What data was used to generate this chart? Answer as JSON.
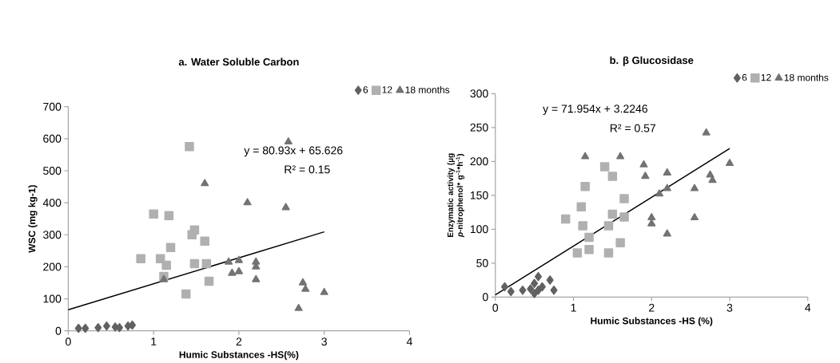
{
  "chart_data": [
    {
      "type": "scatter",
      "title": "a. Water Soluble Carbon",
      "xlabel": "Humic Substances -HS(%)",
      "ylabel": "WSC (mg kg-1)",
      "xlim": [
        0,
        4
      ],
      "xticks": [
        0,
        1,
        2,
        3,
        4
      ],
      "ylim": [
        0,
        700
      ],
      "yticks": [
        0,
        100,
        200,
        300,
        400,
        500,
        600,
        700
      ],
      "legend": "top right",
      "annotations": [
        "y = 80.93x + 65.626",
        "R² = 0.15"
      ],
      "series": [
        {
          "name": "6",
          "color": "#616161",
          "marker": "diamond",
          "x": [
            0.12,
            0.2,
            0.35,
            0.45,
            0.55,
            0.6,
            0.7,
            0.75
          ],
          "values": [
            8,
            8,
            10,
            15,
            12,
            10,
            15,
            18
          ]
        },
        {
          "name": "12",
          "color": "#b0b0b0",
          "marker": "square",
          "x": [
            0.85,
            1.0,
            1.05,
            1.08,
            1.12,
            1.15,
            1.18,
            1.2,
            1.38,
            1.42,
            1.45,
            1.48,
            1.48,
            1.6,
            1.62,
            1.65
          ],
          "values": [
            225,
            365,
            null,
            225,
            170,
            205,
            360,
            260,
            115,
            575,
            300,
            315,
            210,
            280,
            210,
            155
          ]
        },
        {
          "name": "18 months",
          "color": "#737373",
          "marker": "triangle",
          "x": [
            1.12,
            1.6,
            1.88,
            1.92,
            2.0,
            2.0,
            2.1,
            2.2,
            2.2,
            2.2,
            2.55,
            2.58,
            2.7,
            2.75,
            2.78,
            3.0
          ],
          "values": [
            160,
            460,
            215,
            180,
            220,
            185,
            400,
            215,
            200,
            160,
            385,
            590,
            70,
            150,
            130,
            120
          ]
        },
        {
          "type": "line",
          "color": "#000000",
          "marker": "none",
          "x": [
            0,
            3
          ],
          "values": [
            66,
            309
          ]
        }
      ]
    },
    {
      "type": "scatter",
      "title": "b. β Glucosidase",
      "xlabel": "Humic Substances -HS (%)",
      "ylabel": "Enzymatic activity (µg *p*-nitrophenol* g$^{-1}$*h$^{-1}$)",
      "xlim": [
        0,
        4
      ],
      "xticks": [
        0,
        1,
        2,
        3,
        4
      ],
      "ylim": [
        0,
        300
      ],
      "yticks": [
        0,
        50,
        100,
        150,
        200,
        250,
        300
      ],
      "legend": "top right",
      "annotations": [
        "y = 71.954x + 3.2246",
        "R² = 0.57"
      ],
      "series": [
        {
          "name": "6",
          "color": "#616161",
          "marker": "diamond",
          "x": [
            0.12,
            0.2,
            0.35,
            0.45,
            0.5,
            0.55,
            0.55,
            0.6,
            0.7,
            0.75,
            0.5
          ],
          "values": [
            15,
            8,
            10,
            12,
            20,
            30,
            10,
            15,
            25,
            10,
            5
          ]
        },
        {
          "name": "12",
          "color": "#b0b0b0",
          "marker": "square",
          "x": [
            0.9,
            1.05,
            1.1,
            1.12,
            1.15,
            1.2,
            1.2,
            1.4,
            1.45,
            1.45,
            1.5,
            1.5,
            1.6,
            1.65,
            1.65
          ],
          "values": [
            115,
            65,
            133,
            105,
            163,
            70,
            88,
            192,
            65,
            105,
            122,
            178,
            80,
            145,
            118
          ]
        },
        {
          "name": "18 months",
          "color": "#737373",
          "marker": "triangle",
          "x": [
            1.15,
            1.6,
            1.9,
            1.92,
            2.0,
            2.0,
            2.1,
            2.2,
            2.2,
            2.2,
            2.55,
            2.55,
            2.7,
            2.75,
            2.78,
            3.0
          ],
          "values": [
            207,
            207,
            195,
            178,
            117,
            108,
            152,
            183,
            160,
            93,
            160,
            117,
            242,
            180,
            172,
            197
          ]
        },
        {
          "type": "line",
          "color": "#000000",
          "marker": "none",
          "x": [
            0,
            3
          ],
          "values": [
            3,
            219
          ]
        }
      ]
    }
  ]
}
